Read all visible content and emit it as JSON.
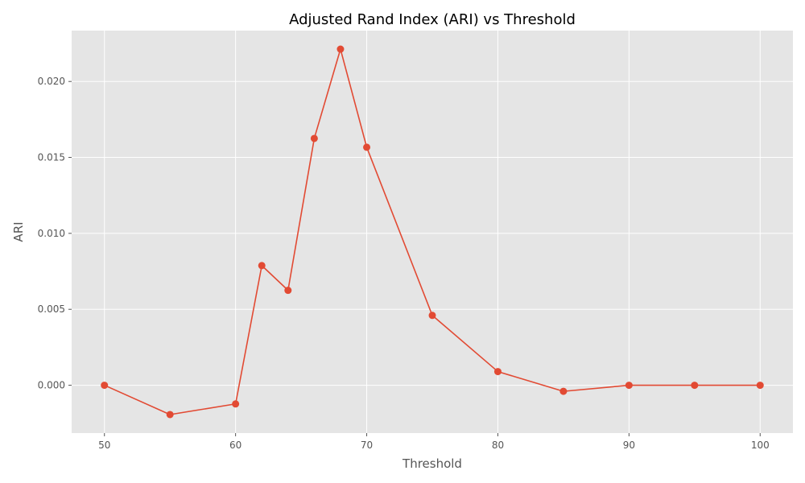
{
  "chart_data": {
    "type": "line",
    "title": "Adjusted Rand Index (ARI) vs Threshold",
    "xlabel": "Threshold",
    "ylabel": "ARI",
    "x": [
      50,
      55,
      60,
      62,
      64,
      66,
      68,
      70,
      75,
      80,
      85,
      90,
      95,
      100
    ],
    "series": [
      {
        "values": [
          0.0,
          -0.00193,
          -0.00123,
          0.00788,
          0.00625,
          0.01625,
          0.02213,
          0.01567,
          0.0046,
          0.0009,
          -0.0004,
          0.0,
          0.0,
          0.0
        ]
      }
    ],
    "xlim": [
      47.5,
      102.5
    ],
    "ylim": [
      -0.00315,
      0.02335
    ],
    "xticks": [
      50,
      60,
      70,
      80,
      90,
      100
    ],
    "xtick_labels": [
      "50",
      "60",
      "70",
      "80",
      "90",
      "100"
    ],
    "yticks": [
      0.0,
      0.005,
      0.01,
      0.015,
      0.02
    ],
    "ytick_labels": [
      "0.000",
      "0.005",
      "0.010",
      "0.015",
      "0.020"
    ],
    "grid": true,
    "legend": "none",
    "colors": {
      "line": "#E24A33",
      "plot_background": "#E5E5E5",
      "grid": "#FFFFFF",
      "tick_text": "#555555",
      "title_text": "#000000"
    }
  }
}
